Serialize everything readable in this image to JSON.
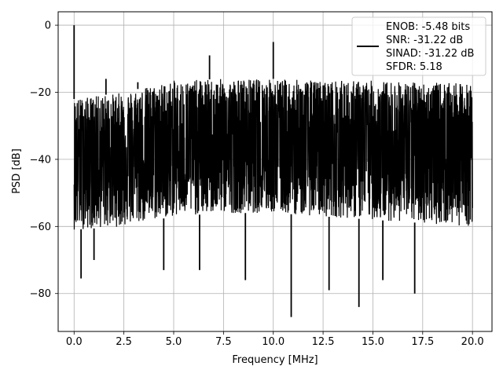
{
  "chart_data": {
    "type": "line",
    "title": "",
    "xlabel": "Frequency [MHz]",
    "ylabel": "PSD [dB]",
    "xlim": [
      -0.8,
      20.98
    ],
    "ylim": [
      -91.3,
      4.0
    ],
    "xticks": [
      0.0,
      2.5,
      5.0,
      7.5,
      10.0,
      12.5,
      15.0,
      17.5,
      20.0
    ],
    "xtick_labels": [
      "0.0",
      "2.5",
      "5.0",
      "7.5",
      "10.0",
      "12.5",
      "15.0",
      "17.5",
      "20.0"
    ],
    "yticks": [
      0,
      -20,
      -40,
      -60,
      -80
    ],
    "ytick_labels": [
      "0",
      "−20",
      "−40",
      "−60",
      "−80"
    ],
    "grid": true,
    "legend_position": "top-right",
    "legend_entries": [
      "ENOB: -5.48 bits",
      "SNR: -31.22 dB",
      "SINAD: -31.22 dB",
      "SFDR: 5.18"
    ],
    "series": [
      {
        "color": "#000000",
        "noise_floor": {
          "x": [
            0.0,
            2.5,
            5.0,
            7.5,
            10.0,
            12.5,
            15.0,
            17.5,
            20.0
          ],
          "y": [
            -39.0,
            -38.5,
            -38.0,
            -37.5,
            -37.5,
            -37.5,
            -37.5,
            -37.5,
            -37.5
          ]
        },
        "upper_envelope": {
          "x": [
            0.0,
            2.5,
            5.0,
            7.5,
            10.0,
            12.5,
            15.0,
            17.5,
            20.0
          ],
          "y": [
            -22.0,
            -20.0,
            -16.5,
            -16.0,
            -16.0,
            -16.5,
            -16.5,
            -17.0,
            -17.5
          ]
        },
        "lower_envelope": {
          "x": [
            0.0,
            2.5,
            5.0,
            7.5,
            10.0,
            12.5,
            15.0,
            17.5,
            20.0
          ],
          "y": [
            -61.0,
            -60.0,
            -57.0,
            -56.0,
            -56.0,
            -57.0,
            -58.0,
            -59.0,
            -60.0
          ]
        },
        "peaks": [
          {
            "x": 0.0,
            "y": 0.0
          },
          {
            "x": 1.6,
            "y": -16.0
          },
          {
            "x": 3.2,
            "y": -17.0
          },
          {
            "x": 6.8,
            "y": -9.0
          },
          {
            "x": 10.0,
            "y": -5.0
          }
        ],
        "dips": [
          {
            "x": 0.35,
            "y": -75.5
          },
          {
            "x": 1.0,
            "y": -70.0
          },
          {
            "x": 4.5,
            "y": -73.0
          },
          {
            "x": 6.3,
            "y": -73.0
          },
          {
            "x": 8.6,
            "y": -76.0
          },
          {
            "x": 10.9,
            "y": -87.0
          },
          {
            "x": 12.8,
            "y": -79.0
          },
          {
            "x": 14.3,
            "y": -84.0
          },
          {
            "x": 15.5,
            "y": -76.0
          },
          {
            "x": 17.1,
            "y": -80.0
          }
        ]
      }
    ]
  }
}
